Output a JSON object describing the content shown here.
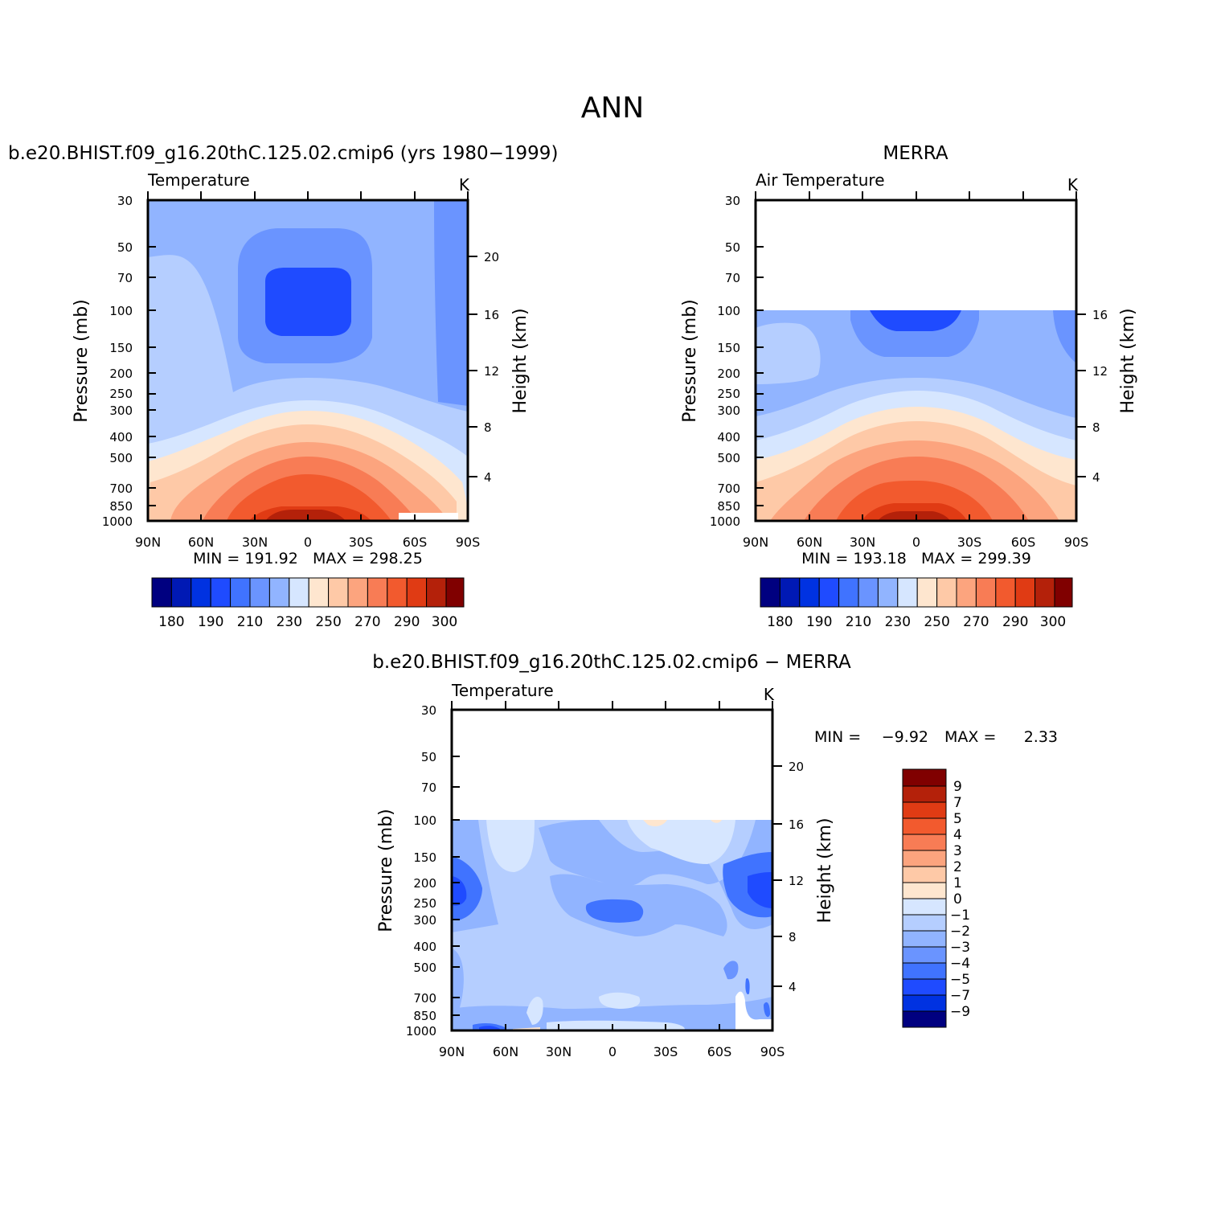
{
  "page_title": "ANN",
  "colors": {
    "levels_full": [
      "#000080",
      "#0019b4",
      "#0032e1",
      "#1f4bff",
      "#4073ff",
      "#6a94ff",
      "#91b4ff",
      "#b5ceff",
      "#d6e6ff",
      "#fee6cf",
      "#fec9a7",
      "#fca47e",
      "#f87c55",
      "#f25a2e",
      "#e03b14",
      "#b4210a",
      "#800000"
    ],
    "levels_diff": [
      "#000080",
      "#0019b4",
      "#0032e1",
      "#1f4bff",
      "#4073ff",
      "#6a94ff",
      "#91b4ff",
      "#b5ceff",
      "#d6e6ff",
      "#fee6cf",
      "#fec9a7",
      "#fca47e",
      "#f87c55",
      "#f25a2e",
      "#e03b14",
      "#b4210a",
      "#800000"
    ]
  },
  "panels": [
    {
      "id": "model",
      "header": "b.e20.BHIST.f09_g16.20thC.125.02.cmip6 (yrs 1980−1999)",
      "left_label": "Temperature",
      "units": "K",
      "ylabel": "Pressure (mb)",
      "y2label": "Height (km)",
      "minmax": "MIN = 191.92   MAX = 298.25"
    },
    {
      "id": "obs",
      "header": "MERRA",
      "left_label": "Air Temperature",
      "units": "K",
      "ylabel": "Pressure (mb)",
      "y2label": "Height (km)",
      "minmax": "MIN = 193.18   MAX = 299.39"
    },
    {
      "id": "diff",
      "header": "b.e20.BHIST.f09_g16.20thC.125.02.cmip6 − MERRA",
      "left_label": "Temperature",
      "units": "K",
      "ylabel": "Pressure (mb)",
      "y2label": "Height (km)",
      "min_label": "MIN =",
      "min_value": "−9.92",
      "max_label": "MAX =",
      "max_value": "2.33"
    }
  ],
  "axes": {
    "x_ticks": [
      "90N",
      "60N",
      "30N",
      "0",
      "30S",
      "60S",
      "90S"
    ],
    "pressure_ticks": [
      "30",
      "50",
      "70",
      "100",
      "150",
      "200",
      "250",
      "300",
      "400",
      "500",
      "700",
      "850",
      "1000"
    ],
    "height_ticks_full": [
      "20",
      "16",
      "12",
      "8",
      "4"
    ],
    "height_ticks_obs": [
      "16",
      "12",
      "8",
      "4"
    ]
  },
  "colorbar_full": {
    "labels": [
      "180",
      "190",
      "210",
      "230",
      "250",
      "270",
      "290",
      "300"
    ]
  },
  "colorbar_diff": {
    "labels_top_to_bottom": [
      "9",
      "7",
      "5",
      "4",
      "3",
      "2",
      "1",
      "0",
      "−1",
      "−2",
      "−3",
      "−4",
      "−5",
      "−7",
      "−9"
    ]
  },
  "chart_data": [
    {
      "type": "heatmap",
      "title": "b.e20.BHIST.f09_g16.20thC.125.02.cmip6 (yrs 1980−1999)",
      "variable": "Temperature",
      "units": "K",
      "x": [
        "90N",
        "60N",
        "30N",
        "0",
        "30S",
        "60S",
        "90S"
      ],
      "y_pressure_mb": [
        30,
        50,
        70,
        100,
        150,
        200,
        250,
        300,
        400,
        500,
        700,
        850,
        1000
      ],
      "ylim": [
        1000,
        30
      ],
      "min": 191.92,
      "max": 298.25,
      "contour_levels": [
        180,
        185,
        190,
        200,
        210,
        220,
        230,
        240,
        250,
        260,
        270,
        280,
        290,
        295,
        300
      ]
    },
    {
      "type": "heatmap",
      "title": "MERRA",
      "variable": "Air Temperature",
      "units": "K",
      "x": [
        "90N",
        "60N",
        "30N",
        "0",
        "30S",
        "60S",
        "90S"
      ],
      "y_pressure_mb": [
        30,
        50,
        70,
        100,
        150,
        200,
        250,
        300,
        400,
        500,
        700,
        850,
        1000
      ],
      "ylim": [
        1000,
        30
      ],
      "data_top_mb": 100,
      "min": 193.18,
      "max": 299.39,
      "contour_levels": [
        180,
        185,
        190,
        200,
        210,
        220,
        230,
        240,
        250,
        260,
        270,
        280,
        290,
        295,
        300
      ]
    },
    {
      "type": "heatmap",
      "title": "b.e20.BHIST.f09_g16.20thC.125.02.cmip6 − MERRA",
      "variable": "Temperature",
      "units": "K",
      "x": [
        "90N",
        "60N",
        "30N",
        "0",
        "30S",
        "60S",
        "90S"
      ],
      "y_pressure_mb": [
        30,
        50,
        70,
        100,
        150,
        200,
        250,
        300,
        400,
        500,
        700,
        850,
        1000
      ],
      "ylim": [
        1000,
        30
      ],
      "data_top_mb": 100,
      "min": -9.92,
      "max": 2.33,
      "contour_levels": [
        -9,
        -7,
        -5,
        -4,
        -3,
        -2,
        -1,
        0,
        1,
        2,
        3,
        4,
        5,
        7,
        9
      ]
    }
  ]
}
